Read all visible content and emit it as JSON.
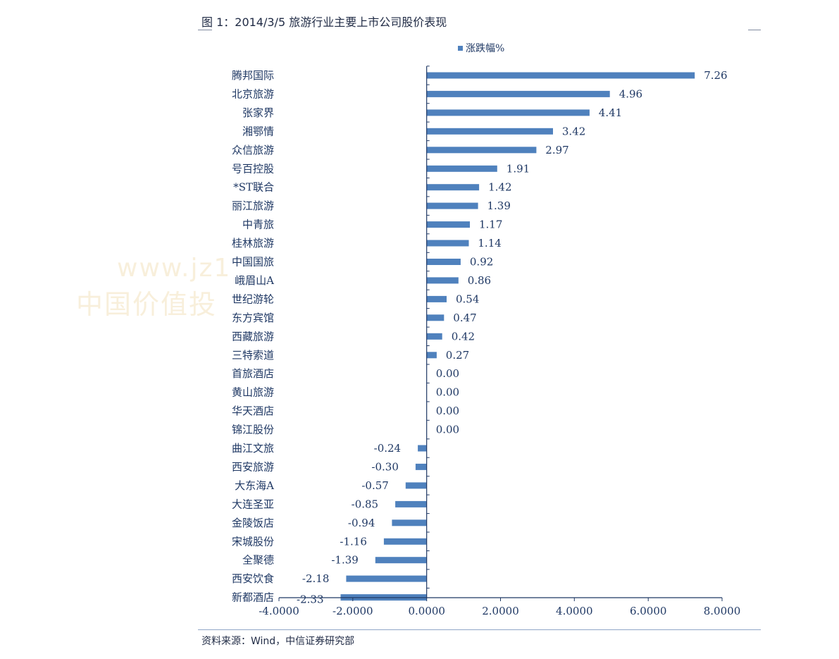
{
  "header": {
    "title": "图 1：2014/3/5 旅游行业主要上市公司股价表现"
  },
  "footer": {
    "source": "资料来源：Wind，中信证券研究部"
  },
  "watermark": {
    "line1": "www.jz1",
    "line2": "中国价值投"
  },
  "colors": {
    "bar": "#4f81bd",
    "axis": "#1f3864",
    "text": "#1f3864"
  },
  "chart_data": {
    "type": "bar",
    "orientation": "horizontal",
    "legend": {
      "entries": [
        "涨跌幅%"
      ],
      "placement": "top"
    },
    "categories": [
      "腾邦国际",
      "北京旅游",
      "张家界",
      "湘鄂情",
      "众信旅游",
      "号百控股",
      "*ST联合",
      "丽江旅游",
      "中青旅",
      "桂林旅游",
      "中国国旅",
      "峨眉山A",
      "世纪游轮",
      "东方宾馆",
      "西藏旅游",
      "三特索道",
      "首旅酒店",
      "黄山旅游",
      "华天酒店",
      "锦江股份",
      "曲江文旅",
      "西安旅游",
      "大东海A",
      "大连圣亚",
      "金陵饭店",
      "宋城股份",
      "全聚德",
      "西安饮食",
      "新都酒店"
    ],
    "series": [
      {
        "name": "涨跌幅%",
        "values": [
          7.26,
          4.96,
          4.41,
          3.42,
          2.97,
          1.91,
          1.42,
          1.39,
          1.17,
          1.14,
          0.92,
          0.86,
          0.54,
          0.47,
          0.42,
          0.27,
          0.0,
          0.0,
          0.0,
          0.0,
          -0.24,
          -0.3,
          -0.57,
          -0.85,
          -0.94,
          -1.16,
          -1.39,
          -2.18,
          -2.33
        ],
        "labels": [
          "7.26",
          "4.96",
          "4.41",
          "3.42",
          "2.97",
          "1.91",
          "1.42",
          "1.39",
          "1.17",
          "1.14",
          "0.92",
          "0.86",
          "0.54",
          "0.47",
          "0.42",
          "0.27",
          "0.00",
          "0.00",
          "0.00",
          "0.00",
          "-0.24",
          "-0.30",
          "-0.57",
          "-0.85",
          "-0.94",
          "-1.16",
          "-1.39",
          "-2.18",
          "-2.33"
        ]
      }
    ],
    "xlim": [
      -4,
      8
    ],
    "x_ticks": [
      -4,
      -2,
      0,
      2,
      4,
      6,
      8
    ],
    "x_tick_labels": [
      "-4.0000",
      "-2.0000",
      "0.0000",
      "2.0000",
      "4.0000",
      "6.0000",
      "8.0000"
    ],
    "grid": false
  }
}
